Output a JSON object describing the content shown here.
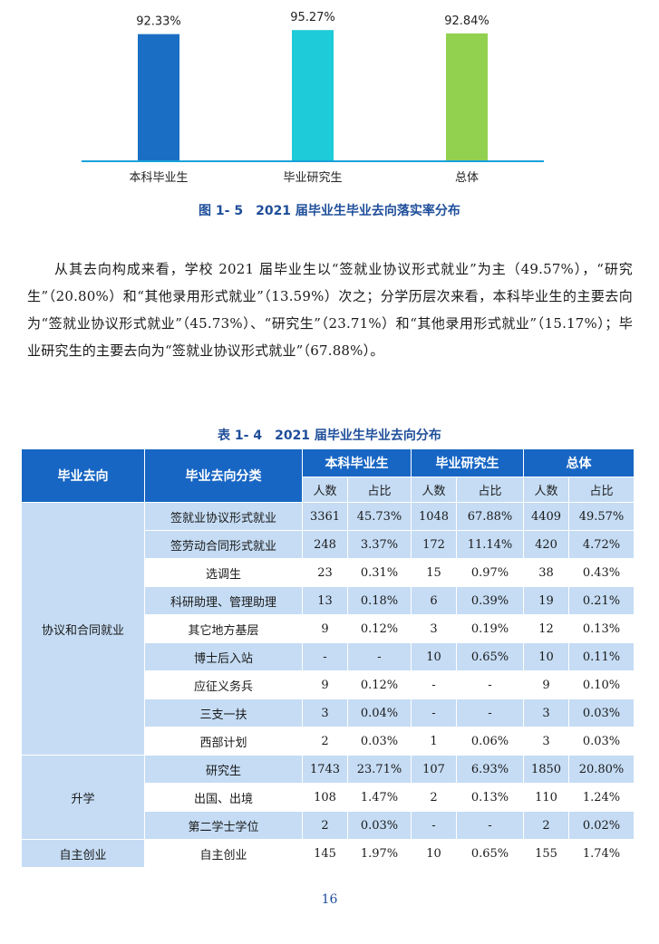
{
  "chart_data": {
    "type": "bar",
    "categories": [
      "本科毕业生",
      "毕业研究生",
      "总体"
    ],
    "values": [
      92.33,
      95.27,
      92.84
    ],
    "value_labels": [
      "92.33%",
      "95.27%",
      "92.84%"
    ],
    "colors": [
      "#1a6fc4",
      "#1dcbd9",
      "#92d050"
    ],
    "axis_color": "#18a2d9",
    "ylim": [
      0,
      100
    ],
    "grid": false,
    "legend": "none"
  },
  "figure_caption": "图 1- 5　2021 届毕业生毕业去向落实率分布",
  "paragraph": "从其去向构成来看，学校 2021 届毕业生以“签就业协议形式就业”为主（49.57%），“研究生”（20.80%）和“其他录用形式就业”（13.59%）次之；分学历层次来看，本科毕业生的主要去向为“签就业协议形式就业”（45.73%）、“研究生”（23.71%）和“其他录用形式就业”（15.17%）；毕业研究生的主要去向为“签就业协议形式就业”（67.88%）。",
  "table_caption": "表 1- 4　2021 届毕业生毕业去向分布",
  "table": {
    "headers": {
      "col1": "毕业去向",
      "col2": "毕业去向分类",
      "groups": [
        "本科毕业生",
        "毕业研究生",
        "总体"
      ],
      "sub": [
        "人数",
        "占比",
        "人数",
        "占比",
        "人数",
        "占比"
      ]
    },
    "groups": [
      {
        "name": "协议和合同就业",
        "rows": [
          {
            "category": "签就业协议形式就业",
            "values": [
              "3361",
              "45.73%",
              "1048",
              "67.88%",
              "4409",
              "49.57%"
            ]
          },
          {
            "category": "签劳动合同形式就业",
            "values": [
              "248",
              "3.37%",
              "172",
              "11.14%",
              "420",
              "4.72%"
            ]
          },
          {
            "category": "选调生",
            "values": [
              "23",
              "0.31%",
              "15",
              "0.97%",
              "38",
              "0.43%"
            ]
          },
          {
            "category": "科研助理、管理助理",
            "values": [
              "13",
              "0.18%",
              "6",
              "0.39%",
              "19",
              "0.21%"
            ]
          },
          {
            "category": "其它地方基层",
            "values": [
              "9",
              "0.12%",
              "3",
              "0.19%",
              "12",
              "0.13%"
            ]
          },
          {
            "category": "博士后入站",
            "values": [
              "-",
              "-",
              "10",
              "0.65%",
              "10",
              "0.11%"
            ]
          },
          {
            "category": "应征义务兵",
            "values": [
              "9",
              "0.12%",
              "-",
              "-",
              "9",
              "0.10%"
            ]
          },
          {
            "category": "三支一扶",
            "values": [
              "3",
              "0.04%",
              "-",
              "-",
              "3",
              "0.03%"
            ]
          },
          {
            "category": "西部计划",
            "values": [
              "2",
              "0.03%",
              "1",
              "0.06%",
              "3",
              "0.03%"
            ]
          }
        ]
      },
      {
        "name": "升学",
        "rows": [
          {
            "category": "研究生",
            "values": [
              "1743",
              "23.71%",
              "107",
              "6.93%",
              "1850",
              "20.80%"
            ]
          },
          {
            "category": "出国、出境",
            "values": [
              "108",
              "1.47%",
              "2",
              "0.13%",
              "110",
              "1.24%"
            ]
          },
          {
            "category": "第二学士学位",
            "values": [
              "2",
              "0.03%",
              "-",
              "-",
              "2",
              "0.02%"
            ]
          }
        ]
      },
      {
        "name": "自主创业",
        "rows": [
          {
            "category": "自主创业",
            "values": [
              "145",
              "1.97%",
              "10",
              "0.65%",
              "155",
              "1.74%"
            ]
          }
        ]
      }
    ]
  },
  "page_number": "16"
}
